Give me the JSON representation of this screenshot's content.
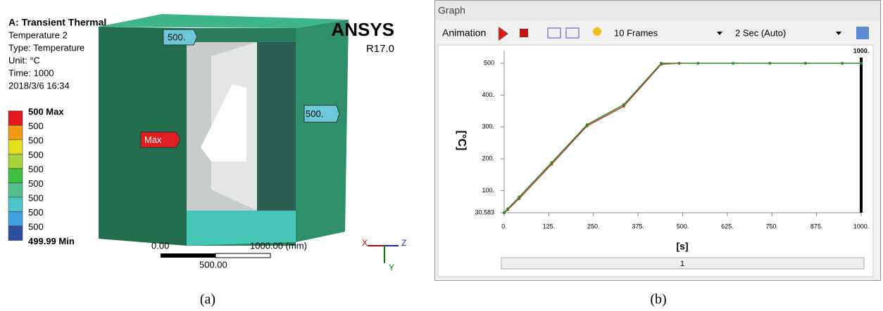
{
  "panel_a": {
    "header": [
      "A: Transient Thermal",
      "Temperature 2",
      "Type: Temperature",
      "Unit: °C",
      "Time: 1000",
      "2018/3/6 16:34"
    ],
    "legend": [
      {
        "label": "500 Max",
        "color": "#e31a1c"
      },
      {
        "label": "500",
        "color": "#f39c12"
      },
      {
        "label": "500",
        "color": "#e6e01a"
      },
      {
        "label": "500",
        "color": "#a6d33a"
      },
      {
        "label": "500",
        "color": "#3fbf3f"
      },
      {
        "label": "500",
        "color": "#52c08e"
      },
      {
        "label": "500",
        "color": "#4cc6c6"
      },
      {
        "label": "500",
        "color": "#3ea2e0"
      },
      {
        "label": "500",
        "color": "#2f4f9e"
      },
      {
        "label": "499.99 Min",
        "color": null
      }
    ],
    "probes": [
      "500.",
      "500.",
      "Max"
    ],
    "logo": "ANSYS",
    "version": "R17.0",
    "scale": [
      "0.00",
      "1000.00 (mm)",
      "500.00"
    ],
    "axes": [
      "X",
      "Y",
      "Z"
    ],
    "caption": "(a)"
  },
  "graph": {
    "title": "Graph",
    "toolbar": [
      "Animation",
      "10 Frames",
      "2 Sec (Auto)"
    ],
    "timeline": "1",
    "caption": "(b)"
  },
  "chart_data": {
    "type": "line",
    "ylabel": "[°C]",
    "xlabel": "[s]",
    "xlim": [
      0,
      1000
    ],
    "ylim": [
      30.583,
      540
    ],
    "xticks": [
      {
        "value": 0,
        "label": "0."
      },
      {
        "value": 125,
        "label": "125."
      },
      {
        "value": 250,
        "label": "250."
      },
      {
        "value": 375,
        "label": "375."
      },
      {
        "value": 500,
        "label": "500."
      },
      {
        "value": 625,
        "label": "625."
      },
      {
        "value": 750,
        "label": "750."
      },
      {
        "value": 875,
        "label": "875."
      },
      {
        "value": 1000,
        "label": "1000."
      }
    ],
    "yticks": [
      30.583,
      {
        "value": 100,
        "label": "100."
      },
      {
        "value": 200,
        "label": "200."
      },
      {
        "value": 300,
        "label": "300."
      },
      {
        "value": 400,
        "label": "400."
      },
      500
    ],
    "cursor": {
      "value": 1000,
      "label": "1000."
    },
    "series": [
      {
        "color": "#c0392b",
        "x": [
          0,
          10,
          42,
          133,
          232,
          335,
          440,
          490
        ],
        "values": [
          30.583,
          40,
          75,
          183,
          303,
          365,
          497,
          500
        ]
      },
      {
        "color": "#2e8b2e",
        "x": [
          0,
          10,
          42,
          133,
          232,
          335,
          440,
          543,
          641,
          744,
          844,
          947,
          1000
        ],
        "values": [
          30.583,
          43,
          80,
          188,
          307,
          370,
          500,
          500,
          500,
          500,
          500,
          500,
          500
        ]
      }
    ]
  }
}
